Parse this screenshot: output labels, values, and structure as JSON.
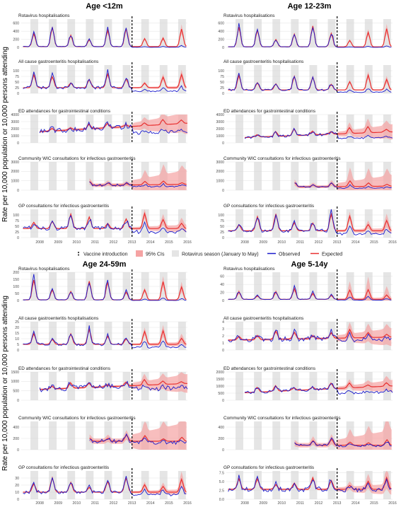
{
  "ylabel": "Rate per 10,000 population or 10,000 persons attending",
  "legend": {
    "vaccine": "Vaccine introduction",
    "ci": "95% CIs",
    "season": "Rotavirus season (January to May)",
    "observed": "Observed",
    "expected": "Expected"
  },
  "colors": {
    "observed": "#1a1acc",
    "expected": "#e83030",
    "ci": "#f5a3a3",
    "season": "#e5e5e5"
  },
  "chart_data": [
    {
      "type": "line",
      "title": "Age <12m",
      "x_range": [
        2007.5,
        2016.5
      ],
      "x_ticks": [
        "2008",
        "2009",
        "2010",
        "2011",
        "2012",
        "2013",
        "2014",
        "2015",
        "2016"
      ],
      "vaccine_introduction": 2013.5,
      "subplots": [
        {
          "title": "Rotavirus hospitalisations",
          "ylim": [
            0,
            700
          ],
          "yticks": [
            "0",
            "200",
            "400",
            "600"
          ],
          "start": 2007.6,
          "obs_base": 20,
          "obs_amp": 430,
          "exp_base": 20,
          "exp_amp": 400,
          "post_obs_factor": 0.08,
          "post_exp_factor": 0.95,
          "ci_rel": 0.1,
          "grow": 0
        },
        {
          "title": "All cause gastroenteritis hospitalisations",
          "ylim": [
            0,
            125
          ],
          "yticks": [
            "0",
            "25",
            "50",
            "75",
            "100"
          ],
          "start": 2007.6,
          "obs_base": 25,
          "obs_amp": 55,
          "exp_base": 25,
          "exp_amp": 50,
          "post_obs_factor": 0.3,
          "post_exp_factor": 1.0,
          "ci_rel": 0.1,
          "grow": 0
        },
        {
          "title": "ED attendances for gastrointestinal conditions",
          "ylim": [
            0,
            4000
          ],
          "yticks": [
            "0",
            "1000",
            "2000",
            "3000",
            "4000"
          ],
          "start": 2008.5,
          "obs_base": 1500,
          "obs_amp": 600,
          "exp_base": 1500,
          "exp_amp": 600,
          "post_obs_factor": 0.55,
          "post_exp_factor": 1.0,
          "ci_rel": 0.2,
          "grow": 150
        },
        {
          "title": "Community WIC consultations for infectious gastroenteritis",
          "ylim": [
            0,
            3000
          ],
          "yticks": [
            "0",
            "1000",
            "2000",
            "3000"
          ],
          "start": 2011.2,
          "obs_base": 450,
          "obs_amp": 350,
          "exp_base": 450,
          "exp_amp": 350,
          "post_obs_factor": 0.6,
          "post_exp_factor": 1.0,
          "ci_rel": 0.9,
          "grow": 20
        },
        {
          "title": "GP consultations for infectious gastroenteritis",
          "ylim": [
            0,
            125
          ],
          "yticks": [
            "0",
            "25",
            "50",
            "75",
            "100"
          ],
          "start": 2007.6,
          "obs_base": 40,
          "obs_amp": 55,
          "exp_base": 40,
          "exp_amp": 55,
          "post_obs_factor": 0.55,
          "post_exp_factor": 1.0,
          "ci_rel": 0.15,
          "grow": 0
        }
      ]
    },
    {
      "type": "line",
      "title": "Age 12-23m",
      "x_range": [
        2007.5,
        2016.5
      ],
      "x_ticks": [
        "2008",
        "2009",
        "2010",
        "2011",
        "2012",
        "2013",
        "2014",
        "2015",
        "2016"
      ],
      "vaccine_introduction": 2013.5,
      "subplots": [
        {
          "title": "Rotavirus hospitalisations",
          "ylim": [
            0,
            700
          ],
          "yticks": [
            "0",
            "200",
            "400",
            "600"
          ],
          "start": 2007.6,
          "obs_base": 15,
          "obs_amp": 450,
          "exp_base": 15,
          "exp_amp": 430,
          "post_obs_factor": 0.06,
          "post_exp_factor": 0.9,
          "ci_rel": 0.1,
          "grow": 0
        },
        {
          "title": "All cause gastroenteritis hospitalisations",
          "ylim": [
            0,
            125
          ],
          "yticks": [
            "0",
            "25",
            "50",
            "75",
            "100"
          ],
          "start": 2007.6,
          "obs_base": 15,
          "obs_amp": 60,
          "exp_base": 15,
          "exp_amp": 55,
          "post_obs_factor": 0.25,
          "post_exp_factor": 1.0,
          "ci_rel": 0.1,
          "grow": 0
        },
        {
          "title": "ED attendances for gastrointestinal conditions",
          "ylim": [
            0,
            4000
          ],
          "yticks": [
            "0",
            "1000",
            "2000",
            "3000",
            "4000"
          ],
          "start": 2008.5,
          "obs_base": 700,
          "obs_amp": 700,
          "exp_base": 700,
          "exp_amp": 800,
          "post_obs_factor": 0.45,
          "post_exp_factor": 1.0,
          "ci_rel": 0.25,
          "grow": 100
        },
        {
          "title": "Community WIC consultations for infectious gastroenteritis",
          "ylim": [
            0,
            3000
          ],
          "yticks": [
            "0",
            "1000",
            "2000",
            "3000"
          ],
          "start": 2011.2,
          "obs_base": 300,
          "obs_amp": 500,
          "exp_base": 300,
          "exp_amp": 500,
          "post_obs_factor": 0.5,
          "post_exp_factor": 1.0,
          "ci_rel": 1.0,
          "grow": 15
        },
        {
          "title": "GP consultations for infectious gastroenteritis",
          "ylim": [
            0,
            125
          ],
          "yticks": [
            "0",
            "25",
            "50",
            "75",
            "100"
          ],
          "start": 2007.6,
          "obs_base": 30,
          "obs_amp": 70,
          "exp_base": 30,
          "exp_amp": 65,
          "post_obs_factor": 0.45,
          "post_exp_factor": 1.0,
          "ci_rel": 0.15,
          "grow": 0
        }
      ]
    },
    {
      "type": "line",
      "title": "Age 24-59m",
      "x_range": [
        2007.5,
        2016.5
      ],
      "x_ticks": [
        "2008",
        "2009",
        "2010",
        "2011",
        "2012",
        "2013",
        "2014",
        "2015",
        "2016"
      ],
      "vaccine_introduction": 2013.5,
      "subplots": [
        {
          "title": "Rotavirus hospitalisations",
          "ylim": [
            0,
            200
          ],
          "yticks": [
            "0",
            "50",
            "100",
            "150",
            "200"
          ],
          "start": 2007.6,
          "obs_base": 5,
          "obs_amp": 130,
          "exp_base": 5,
          "exp_amp": 120,
          "post_obs_factor": 0.12,
          "post_exp_factor": 0.9,
          "ci_rel": 0.15,
          "grow": 0
        },
        {
          "title": "All cause gastroenteritis hospitalisations",
          "ylim": [
            0,
            25
          ],
          "yticks": [
            "0",
            "5",
            "10",
            "15",
            "20",
            "25"
          ],
          "start": 2007.6,
          "obs_base": 5,
          "obs_amp": 12,
          "exp_base": 5,
          "exp_amp": 11,
          "post_obs_factor": 0.4,
          "post_exp_factor": 1.0,
          "ci_rel": 0.15,
          "grow": 0
        },
        {
          "title": "ED attendances for gastrointestinal conditions",
          "ylim": [
            0,
            1500
          ],
          "yticks": [
            "0",
            "500",
            "1000",
            "1500"
          ],
          "start": 2008.5,
          "obs_base": 550,
          "obs_amp": 250,
          "exp_base": 550,
          "exp_amp": 250,
          "post_obs_factor": 0.7,
          "post_exp_factor": 1.0,
          "ci_rel": 0.2,
          "grow": 40
        },
        {
          "title": "Community WIC consultations for infectious gastroenteritis",
          "ylim": [
            0,
            500
          ],
          "yticks": [
            "0",
            "200",
            "400"
          ],
          "start": 2011.2,
          "obs_base": 150,
          "obs_amp": 100,
          "exp_base": 150,
          "exp_amp": 100,
          "post_obs_factor": 0.75,
          "post_exp_factor": 1.0,
          "ci_rel": 0.8,
          "grow": 0
        },
        {
          "title": "GP consultations for infectious gastroenteritis",
          "ylim": [
            0,
            40
          ],
          "yticks": [
            "0",
            "10",
            "20",
            "30"
          ],
          "start": 2007.6,
          "obs_base": 10,
          "obs_amp": 18,
          "exp_base": 10,
          "exp_amp": 17,
          "post_obs_factor": 0.6,
          "post_exp_factor": 1.0,
          "ci_rel": 0.15,
          "grow": 0
        }
      ]
    },
    {
      "type": "line",
      "title": "Age 5-14y",
      "x_range": [
        2007.5,
        2016.5
      ],
      "x_ticks": [
        "2008",
        "2009",
        "2010",
        "2011",
        "2012",
        "2013",
        "2014",
        "2015",
        "2016"
      ],
      "vaccine_introduction": 2013.5,
      "subplots": [
        {
          "title": "Rotavirus hospitalisations",
          "ylim": [
            0,
            70
          ],
          "yticks": [
            "0",
            "20",
            "40",
            "60"
          ],
          "start": 2007.6,
          "obs_base": 3,
          "obs_amp": 25,
          "exp_base": 3,
          "exp_amp": 22,
          "post_obs_factor": 0.3,
          "post_exp_factor": 1.0,
          "ci_rel": 0.6,
          "grow": 0
        },
        {
          "title": "All cause gastroenteritis hospitalisations",
          "ylim": [
            0,
            4
          ],
          "yticks": [
            "0",
            "1",
            "2",
            "3",
            "4"
          ],
          "start": 2007.6,
          "obs_base": 1.4,
          "obs_amp": 1.2,
          "exp_base": 1.4,
          "exp_amp": 1.0,
          "post_obs_factor": 0.75,
          "post_exp_factor": 1.0,
          "ci_rel": 0.25,
          "grow": 0.05
        },
        {
          "title": "ED attendances for gastrointestinal conditions",
          "ylim": [
            0,
            2000
          ],
          "yticks": [
            "0",
            "500",
            "1000",
            "1500",
            "2000"
          ],
          "start": 2008.5,
          "obs_base": 500,
          "obs_amp": 350,
          "exp_base": 500,
          "exp_amp": 350,
          "post_obs_factor": 0.55,
          "post_exp_factor": 1.0,
          "ci_rel": 0.15,
          "grow": 60
        },
        {
          "title": "Community WIC consultations for infectious gastroenteritis",
          "ylim": [
            0,
            500
          ],
          "yticks": [
            "0",
            "200",
            "400"
          ],
          "start": 2011.2,
          "obs_base": 80,
          "obs_amp": 90,
          "exp_base": 80,
          "exp_amp": 90,
          "post_obs_factor": 0.75,
          "post_exp_factor": 1.0,
          "ci_rel": 1.2,
          "grow": 0
        },
        {
          "title": "GP consultations for infectious gastroenteritis",
          "ylim": [
            0,
            8
          ],
          "yticks": [
            "0.0",
            "2.5",
            "5.0",
            "7.5"
          ],
          "start": 2007.6,
          "obs_base": 2.8,
          "obs_amp": 3.0,
          "exp_base": 2.8,
          "exp_amp": 2.8,
          "post_obs_factor": 0.85,
          "post_exp_factor": 1.0,
          "ci_rel": 0.2,
          "grow": 0
        }
      ]
    }
  ]
}
